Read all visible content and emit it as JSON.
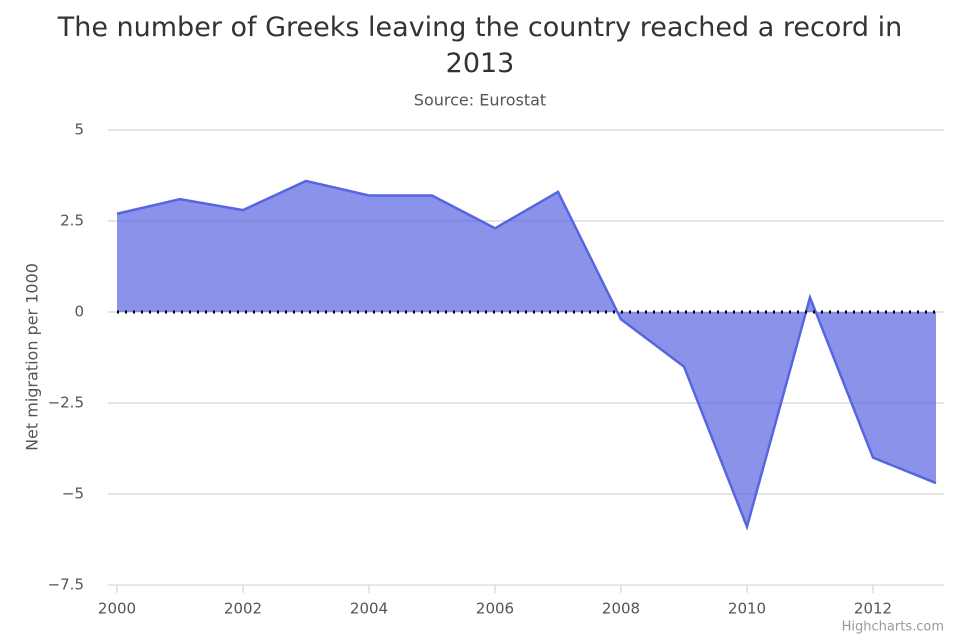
{
  "chart_data": {
    "type": "area",
    "title": "The number of Greeks leaving the country reached a record in 2013",
    "subtitle": "Source: Eurostat",
    "y_label": "Net migration per 1000",
    "credits": "Highcharts.com",
    "x": [
      2000,
      2001,
      2002,
      2003,
      2004,
      2005,
      2006,
      2007,
      2008,
      2009,
      2010,
      2011,
      2012,
      2013
    ],
    "series": [
      {
        "color": "#5865e0",
        "values": [
          2.7,
          3.1,
          2.8,
          3.6,
          3.2,
          3.2,
          2.3,
          3.3,
          -0.2,
          -1.5,
          -5.9,
          0.4,
          -4.0,
          -4.7
        ]
      }
    ],
    "xlim": [
      2000,
      2013
    ],
    "xticks": [
      2000,
      2002,
      2004,
      2006,
      2008,
      2010,
      2012
    ],
    "ylim": [
      -7.5,
      5
    ],
    "yticks": [
      5,
      2.5,
      0,
      {
        "value": -2.5,
        "label": "−2.5"
      },
      {
        "value": -5,
        "label": "−5"
      },
      {
        "value": -7.5,
        "label": "−7.5"
      }
    ],
    "plot_lines": [
      0
    ],
    "grid": true
  }
}
